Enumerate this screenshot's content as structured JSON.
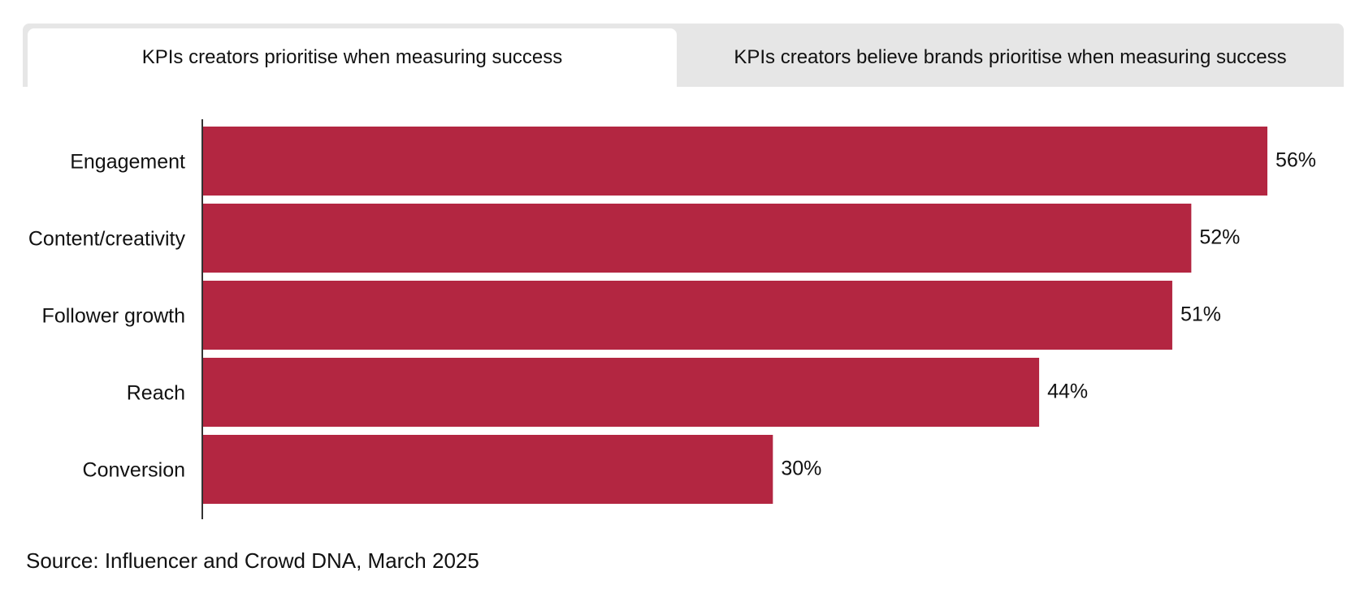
{
  "tabs": [
    {
      "label": "KPIs creators prioritise when measuring success",
      "active": true
    },
    {
      "label": "KPIs creators believe brands prioritise when measuring success",
      "active": false
    }
  ],
  "colors": {
    "bar": "#b32641",
    "axis": "#333333",
    "tab_inactive": "#e6e6e6",
    "tab_active": "#ffffff"
  },
  "chart_data": {
    "type": "bar",
    "orientation": "horizontal",
    "categories": [
      "Engagement",
      "Content/creativity",
      "Follower growth",
      "Reach",
      "Conversion"
    ],
    "values": [
      56,
      52,
      51,
      44,
      30
    ],
    "value_suffix": "%",
    "xlim": [
      0,
      56
    ],
    "grid": false,
    "legend": "none"
  },
  "source": "Source: Influencer and Crowd DNA, March 2025"
}
